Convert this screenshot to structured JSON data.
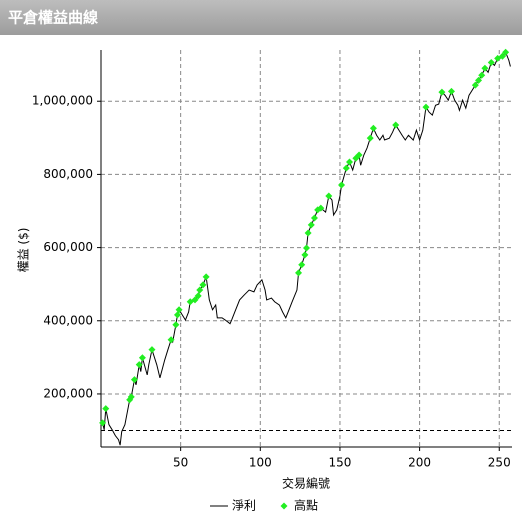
{
  "header": {
    "title": "平倉權益曲線"
  },
  "chart_data": {
    "type": "line",
    "x_label": "交易編號",
    "y_label": "權益 ($)",
    "xlim": [
      0,
      258
    ],
    "ylim": [
      55000,
      1140000
    ],
    "xticks": [
      50,
      100,
      150,
      200,
      250
    ],
    "yticks": [
      {
        "value": 200000,
        "label": "200,000"
      },
      {
        "value": 400000,
        "label": "400,000"
      },
      {
        "value": 600000,
        "label": "600,000"
      },
      {
        "value": 800000,
        "label": "800,000"
      },
      {
        "value": 1000000,
        "label": "1,000,000"
      }
    ],
    "baseline": 100000,
    "grid": true,
    "series": [
      {
        "name": "淨利",
        "color": "#000000",
        "style": "line",
        "x": [
          1,
          2,
          3,
          5,
          7,
          9,
          11,
          12,
          13,
          15,
          18,
          19,
          21,
          22,
          24,
          25,
          26,
          29,
          30,
          32,
          35,
          37,
          40,
          42,
          44,
          45,
          47,
          48,
          49,
          51,
          53,
          55,
          56,
          59,
          61,
          62,
          64,
          66,
          68,
          70,
          72,
          73,
          76,
          78,
          81,
          82,
          84,
          87,
          90,
          93,
          96,
          98,
          101,
          103,
          104,
          107,
          109,
          112,
          114,
          116,
          118,
          120,
          123,
          124,
          126,
          128,
          129,
          130,
          132,
          134,
          136,
          138,
          141,
          143,
          145,
          146,
          148,
          150,
          151,
          154,
          156,
          158,
          160,
          162,
          163,
          165,
          167,
          169,
          171,
          173,
          175,
          177,
          178,
          181,
          183,
          185,
          187,
          189,
          191,
          193,
          196,
          198,
          200,
          202,
          204,
          206,
          208,
          210,
          212,
          214,
          216,
          218,
          220,
          222,
          224,
          225,
          227,
          229,
          231,
          233,
          235,
          237,
          239,
          241,
          243,
          245,
          247,
          249,
          252,
          254,
          256,
          257
        ],
        "values": [
          121000,
          102000,
          160000,
          116000,
          102000,
          86000,
          75000,
          60000,
          97000,
          116000,
          184000,
          192000,
          239000,
          225000,
          280000,
          261000,
          299000,
          252000,
          280000,
          321000,
          280000,
          244000,
          293000,
          321000,
          348000,
          342000,
          389000,
          416000,
          430000,
          416000,
          402000,
          424000,
          452000,
          457000,
          468000,
          484000,
          498000,
          520000,
          457000,
          430000,
          443000,
          408000,
          408000,
          402000,
          392000,
          402000,
          424000,
          457000,
          471000,
          484000,
          479000,
          498000,
          512000,
          484000,
          457000,
          462000,
          452000,
          443000,
          424000,
          408000,
          430000,
          452000,
          484000,
          531000,
          553000,
          580000,
          599000,
          640000,
          662000,
          681000,
          703000,
          708000,
          697000,
          741000,
          730000,
          689000,
          703000,
          741000,
          771000,
          817000,
          834000,
          812000,
          844000,
          853000,
          825000,
          853000,
          872000,
          899000,
          926000,
          907000,
          894000,
          907000,
          894000,
          899000,
          915000,
          935000,
          921000,
          907000,
          894000,
          907000,
          894000,
          921000,
          894000,
          921000,
          984000,
          970000,
          962000,
          989000,
          992000,
          1025000,
          1016000,
          1003000,
          1027000,
          1003000,
          989000,
          975000,
          1003000,
          981000,
          1016000,
          1030000,
          1044000,
          1057000,
          1071000,
          1090000,
          1079000,
          1106000,
          1098000,
          1117000,
          1123000,
          1134000,
          1112000,
          1095000
        ]
      },
      {
        "name": "高點",
        "color": "#22ee22",
        "style": "marker",
        "x": [
          1,
          3,
          18,
          19,
          21,
          24,
          26,
          32,
          44,
          47,
          48,
          49,
          56,
          59,
          61,
          62,
          64,
          66,
          124,
          126,
          128,
          129,
          130,
          132,
          134,
          136,
          138,
          143,
          151,
          154,
          156,
          160,
          162,
          169,
          171,
          185,
          204,
          214,
          220,
          235,
          237,
          239,
          241,
          245,
          249,
          252,
          254
        ],
        "values": [
          121000,
          160000,
          184000,
          192000,
          239000,
          280000,
          299000,
          321000,
          348000,
          389000,
          416000,
          430000,
          452000,
          457000,
          468000,
          484000,
          498000,
          520000,
          531000,
          553000,
          580000,
          599000,
          640000,
          662000,
          681000,
          703000,
          708000,
          741000,
          771000,
          817000,
          834000,
          844000,
          853000,
          899000,
          926000,
          935000,
          984000,
          1025000,
          1027000,
          1044000,
          1057000,
          1071000,
          1090000,
          1106000,
          1117000,
          1123000,
          1134000
        ]
      }
    ]
  }
}
